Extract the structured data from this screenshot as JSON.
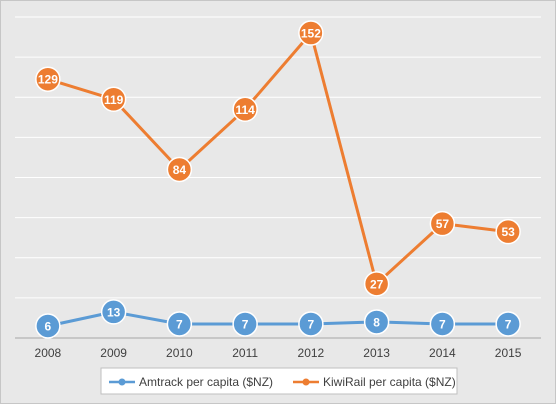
{
  "chart_data": {
    "type": "line",
    "categories": [
      "2008",
      "2009",
      "2010",
      "2011",
      "2012",
      "2013",
      "2014",
      "2015"
    ],
    "series": [
      {
        "name": "Amtrack per capita ($NZ)",
        "color": "#5b9bd5",
        "values": [
          6,
          13,
          7,
          7,
          7,
          8,
          7,
          7
        ],
        "labels": [
          "6",
          "13",
          "7",
          "7",
          "7",
          "8",
          "7",
          "7"
        ]
      },
      {
        "name": "KiwiRail per capita ($NZ)",
        "color": "#ed7d31",
        "values": [
          129,
          119,
          84,
          114,
          152,
          27,
          57,
          53
        ],
        "labels": [
          "129",
          "119",
          "84",
          "114",
          "152",
          "27",
          "57",
          "53"
        ]
      }
    ],
    "ylim": [
      0,
      160
    ],
    "y_gridline_step": 20,
    "grid": true,
    "y_tick_labels_visible": false,
    "legend_position": "bottom",
    "title": "",
    "xlabel": "",
    "ylabel": ""
  }
}
